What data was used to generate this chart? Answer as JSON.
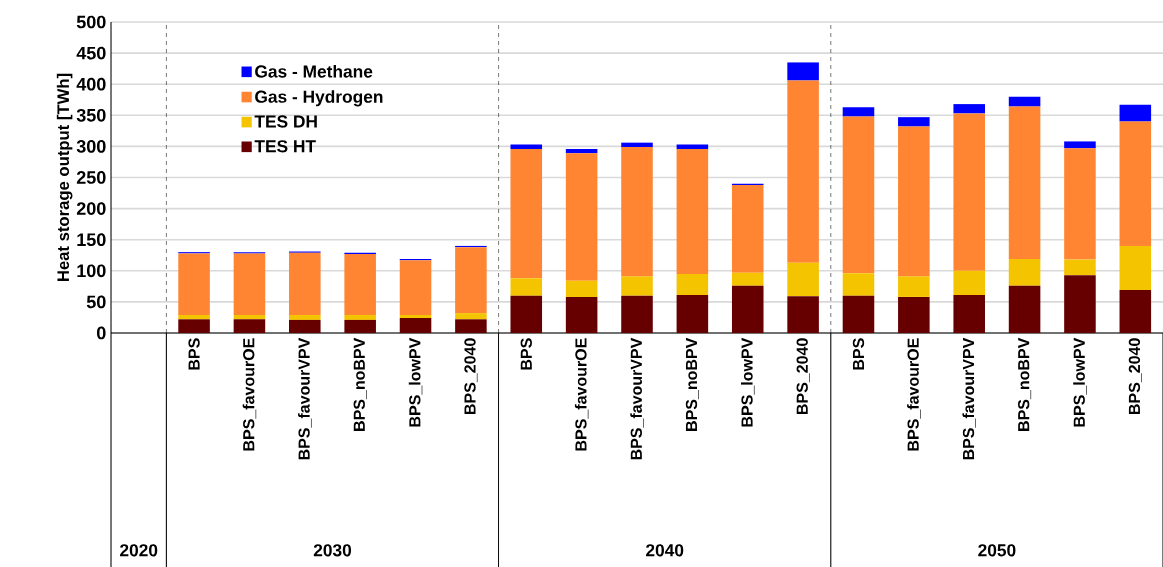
{
  "chart_data": {
    "type": "bar",
    "stacked": true,
    "ylabel": "Heat storage output [TWh]",
    "categories": [
      null,
      "BPS",
      "BPS_favourOE",
      "BPS_favourVPV",
      "BPS_noBPV",
      "BPS_lowPV",
      "BPS_2040",
      "BPS",
      "BPS_favourOE",
      "BPS_favourVPV",
      "BPS_noBPV",
      "BPS_lowPV",
      "BPS_2040",
      "BPS",
      "BPS_favourOE",
      "BPS_favourVPV",
      "BPS_noBPV",
      "BPS_lowPV",
      "BPS_2040"
    ],
    "series": [
      {
        "name": "TES HT",
        "color": "#660000",
        "values": [
          null,
          22,
          22,
          21,
          21,
          24,
          22,
          60,
          58,
          60,
          61,
          76,
          59,
          60,
          58,
          61,
          76,
          93,
          69
        ]
      },
      {
        "name": "TES DH",
        "color": "#f5c400",
        "values": [
          null,
          7,
          7,
          8,
          8,
          5,
          10,
          28,
          26,
          31,
          34,
          21,
          54,
          36,
          33,
          39,
          43,
          25,
          71
        ]
      },
      {
        "name": "Gas - Hydrogen",
        "color": "#ff8533",
        "values": [
          null,
          99,
          99,
          100,
          98,
          88,
          106,
          208,
          205,
          208,
          201,
          141,
          293,
          252,
          241,
          253,
          245,
          179,
          200
        ]
      },
      {
        "name": "Gas - Methane",
        "color": "#0000ff",
        "values": [
          null,
          2,
          2,
          2,
          2,
          2,
          2,
          7,
          7,
          7,
          7,
          2,
          29,
          15,
          15,
          15,
          16,
          11,
          27
        ]
      }
    ],
    "ylim": [
      0,
      500
    ],
    "yticks": [
      0,
      50,
      100,
      150,
      200,
      250,
      300,
      350,
      400,
      450,
      500
    ],
    "grid": "y",
    "legend": "top left",
    "annotations": [
      "2020",
      "2030",
      "2040",
      "2050"
    ]
  }
}
